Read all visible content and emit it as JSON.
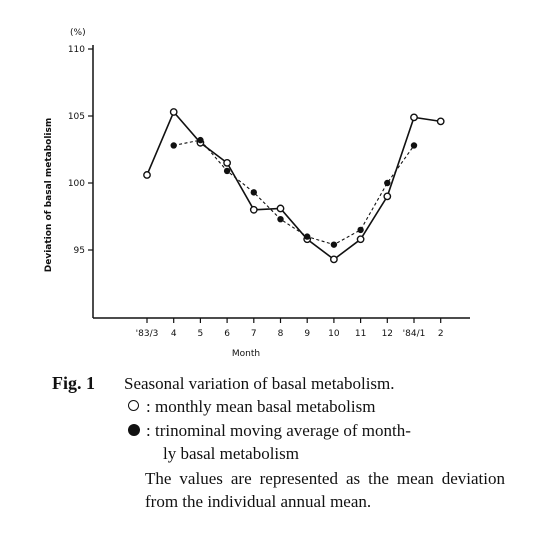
{
  "chart_data": {
    "type": "line",
    "y_unit_label": "(%)",
    "ylabel": "Deviation of basal metabolism",
    "xlabel": "Month",
    "ylim": [
      90,
      110
    ],
    "yticks": [
      95,
      100,
      105,
      110
    ],
    "categories": [
      "'83/3",
      "4",
      "5",
      "6",
      "7",
      "8",
      "9",
      "10",
      "11",
      "12",
      "'84/1",
      "2"
    ],
    "grid": false,
    "series": [
      {
        "marker": "open-circle",
        "line": "solid",
        "values": [
          100.6,
          105.3,
          103.0,
          101.5,
          98.0,
          98.1,
          95.8,
          94.3,
          95.8,
          99.0,
          104.9,
          104.6
        ]
      },
      {
        "marker": "filled-circle",
        "line": "dashed",
        "values": [
          null,
          102.8,
          103.2,
          100.9,
          99.3,
          97.3,
          96.0,
          95.4,
          96.5,
          100.0,
          102.8,
          null
        ]
      }
    ]
  },
  "caption": {
    "fig_label": "Fig. 1",
    "title": "Seasonal variation of basal metabolism.",
    "legend_open": ": monthly mean basal metabolism",
    "legend_filled_line1": ": trinominal moving average of month-",
    "legend_filled_line2": "ly basal metabolism",
    "note": "The values are represented as the mean deviation from the individual annual mean."
  }
}
